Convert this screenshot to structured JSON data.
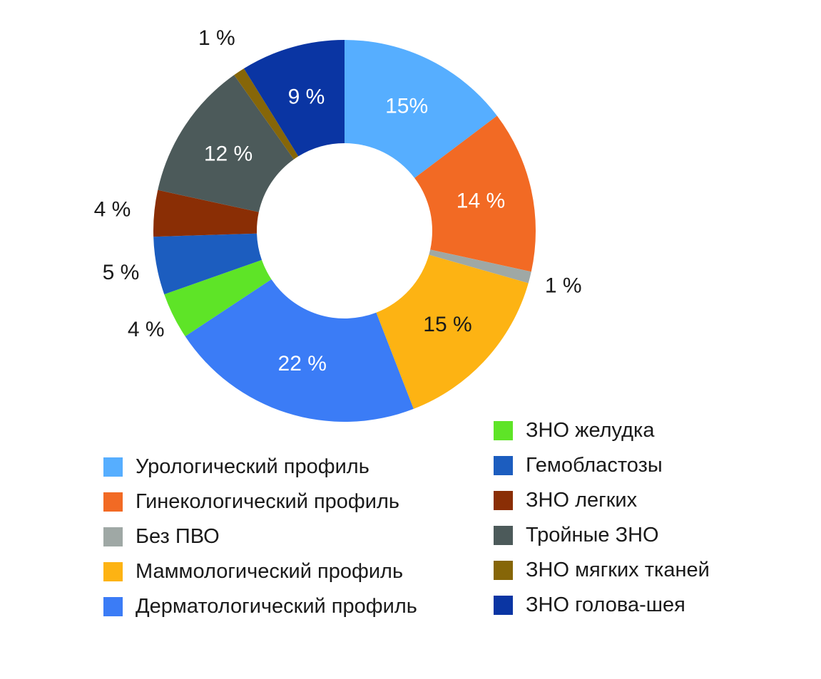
{
  "chart_data": {
    "type": "pie",
    "donut": true,
    "title": "",
    "series": [
      {
        "name": "Урологический профиль",
        "value": 15,
        "label": "15%",
        "color": "#56aeff",
        "label_color": "#ffffff"
      },
      {
        "name": "Гинекологический профиль",
        "value": 14,
        "label": "14 %",
        "color": "#f26a24",
        "label_color": "#ffffff"
      },
      {
        "name": "Без ПВО",
        "value": 1,
        "label": "1 %",
        "color": "#9fa8a5",
        "label_color": "#1a1a1a"
      },
      {
        "name": "Маммологический профиль",
        "value": 15,
        "label": "15 %",
        "color": "#fdb313",
        "label_color": "#1a1a1a"
      },
      {
        "name": "Дерматологический профиль",
        "value": 22,
        "label": "22 %",
        "color": "#3b7cf6",
        "label_color": "#ffffff"
      },
      {
        "name": "ЗНО желудка",
        "value": 4,
        "label": "4 %",
        "color": "#5ee427",
        "label_color": "#1a1a1a"
      },
      {
        "name": "Гемобластозы",
        "value": 5,
        "label": "5 %",
        "color": "#1c5dbf",
        "label_color": "#1a1a1a"
      },
      {
        "name": "ЗНО легких",
        "value": 4,
        "label": "4 %",
        "color": "#8a2e05",
        "label_color": "#1a1a1a"
      },
      {
        "name": "Тройные ЗНО",
        "value": 12,
        "label": "12 %",
        "color": "#4c5a5a",
        "label_color": "#ffffff"
      },
      {
        "name": "ЗНО мягких тканей",
        "value": 1,
        "label": "1 %",
        "color": "#866608",
        "label_color": "#1a1a1a"
      },
      {
        "name": "ЗНО голова-шея",
        "value": 9,
        "label": "9 %",
        "color": "#0a35a3",
        "label_color": "#ffffff"
      }
    ],
    "legend_position": "bottom"
  }
}
